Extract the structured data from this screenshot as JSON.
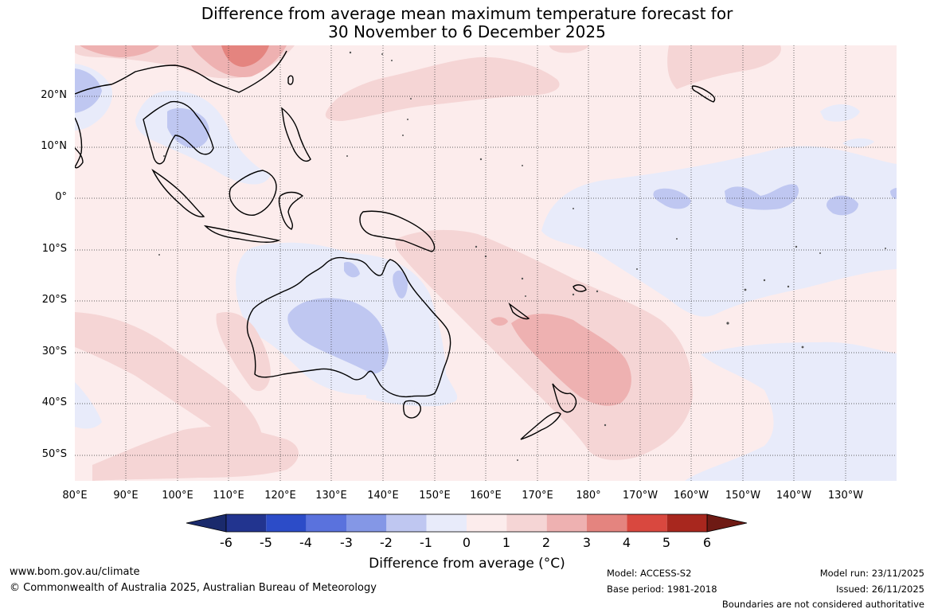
{
  "title": {
    "line1": "Difference from average mean maximum temperature forecast for",
    "line2": "30 November to 6 December 2025"
  },
  "map": {
    "lat_labels": [
      "20°N",
      "10°N",
      "0°",
      "10°S",
      "20°S",
      "30°S",
      "40°S",
      "50°S"
    ],
    "lon_labels": [
      "80°E",
      "90°E",
      "100°E",
      "110°E",
      "120°E",
      "130°E",
      "140°E",
      "150°E",
      "160°E",
      "170°E",
      "180°",
      "170°W",
      "160°W",
      "150°W",
      "140°W",
      "130°W"
    ]
  },
  "colorbar": {
    "ticks": [
      "-6",
      "-5",
      "-4",
      "-3",
      "-2",
      "-1",
      "0",
      "1",
      "2",
      "3",
      "4",
      "5",
      "6"
    ],
    "colors": [
      "#22348f",
      "#2c4cc8",
      "#5a72dd",
      "#8497e6",
      "#bfc7f1",
      "#e8ebfa",
      "#fcecec",
      "#f5d5d5",
      "#eeb1b1",
      "#e4847f",
      "#d9483f",
      "#a8271e"
    ],
    "under_color": "#1a2a6c",
    "over_color": "#6e1a14",
    "label": "Difference from average (°C)"
  },
  "footer": {
    "website": "www.bom.gov.au/climate",
    "copyright": "© Commonwealth of Australia 2025, Australian Bureau of Meteorology",
    "model": "Model: ACCESS-S2",
    "base_period": "Base period: 1981-2018",
    "model_run": "Model run: 23/11/2025",
    "issued": "Issued: 26/11/2025",
    "disclaimer": "Boundaries are not considered authoritative"
  }
}
